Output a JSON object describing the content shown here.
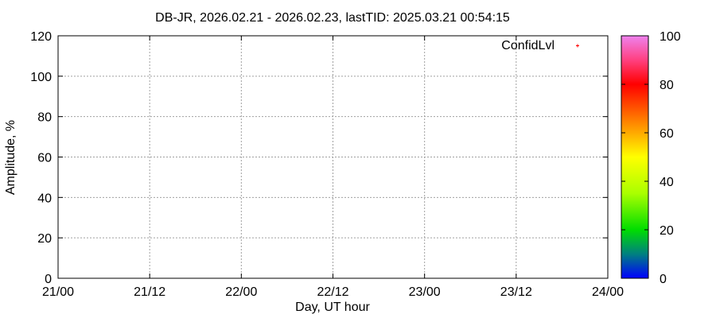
{
  "chart_data": {
    "type": "scatter",
    "title": "DB-JR, 2026.02.21 - 2026.02.23, lastTID: 2025.03.21 00:54:15",
    "xlabel": "Day, UT hour",
    "ylabel": "Amplitude, %",
    "xlim": [
      0,
      72
    ],
    "ylim": [
      0,
      120
    ],
    "xticks": [
      {
        "v": 0,
        "label": "21/00"
      },
      {
        "v": 12,
        "label": "21/12"
      },
      {
        "v": 24,
        "label": "22/00"
      },
      {
        "v": 36,
        "label": "22/12"
      },
      {
        "v": 48,
        "label": "23/00"
      },
      {
        "v": 60,
        "label": "23/12"
      },
      {
        "v": 72,
        "label": "24/00"
      }
    ],
    "yticks": [
      0,
      20,
      40,
      60,
      80,
      100,
      120
    ],
    "grid": true,
    "legend": {
      "placement": "top-right",
      "entries": [
        {
          "name": "ConfidLvl",
          "color": "#ff0000"
        }
      ]
    },
    "series": [
      {
        "name": "ConfidLvl",
        "points": []
      }
    ],
    "colorbar": {
      "range": [
        0,
        100
      ],
      "ticks": [
        0,
        20,
        40,
        60,
        80,
        100
      ],
      "stops": [
        {
          "v": 0,
          "color": "#0000ff"
        },
        {
          "v": 10,
          "color": "#008080"
        },
        {
          "v": 20,
          "color": "#00dd00"
        },
        {
          "v": 35,
          "color": "#aaff00"
        },
        {
          "v": 50,
          "color": "#ffff00"
        },
        {
          "v": 60,
          "color": "#ffaa00"
        },
        {
          "v": 80,
          "color": "#ff0000"
        },
        {
          "v": 90,
          "color": "#ff4080"
        },
        {
          "v": 100,
          "color": "#ee82ee"
        }
      ]
    }
  }
}
